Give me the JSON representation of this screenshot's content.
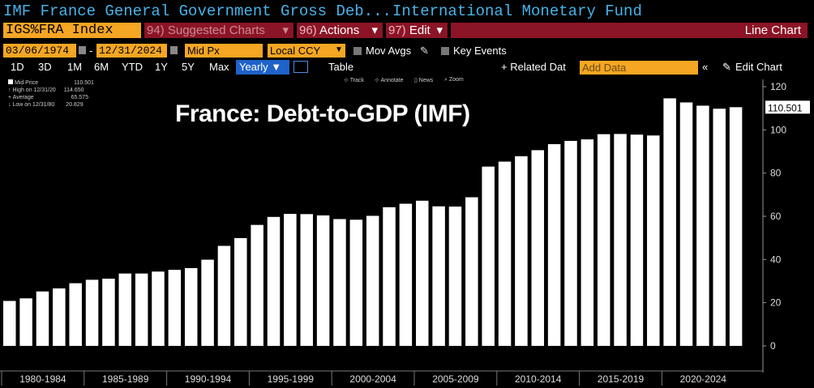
{
  "window": {
    "title_left": "IMF France General Government Gross Deb...",
    "title_right": "International Monetary Fund"
  },
  "toolbar": {
    "ticker": "IGS%FRA Index",
    "suggested_num": "94)",
    "suggested_label": "Suggested Charts",
    "actions_num": "96)",
    "actions_label": "Actions",
    "edit_num": "97)",
    "edit_label": "Edit",
    "chart_type": "Line Chart",
    "caret": "▾"
  },
  "dates": {
    "start": "03/06/1974",
    "separator": "-",
    "end": "12/31/2024",
    "price_field": "Mid Px",
    "currency": "Local CCY",
    "mov_avgs": "Mov Avgs",
    "key_events": "Key Events"
  },
  "range": {
    "buttons": [
      "1D",
      "3D",
      "1M",
      "6M",
      "YTD",
      "1Y",
      "5Y",
      "Max"
    ],
    "frequency": "Yearly ▼",
    "table": "Table",
    "related": "+ Related Dat",
    "add_data_placeholder": "Add Data",
    "collapse": "«",
    "edit_chart": "Edit Chart"
  },
  "legend": {
    "mid_price": "Mid Price",
    "mid_price_value": "110.501",
    "high": "High on 12/31/20",
    "high_value": "114.650",
    "average": "Average",
    "average_value": "65.575",
    "low": "Low on 12/31/80",
    "low_value": "20.829"
  },
  "annotations": [
    "Track",
    "Annotate",
    "News",
    "Zoom"
  ],
  "overlay_title": "France: Debt-to-GDP (IMF)",
  "last_value_label": "110.501",
  "colors": {
    "accent": "#47b3e8",
    "orange": "#f5a623",
    "maroon": "#8b1426",
    "blue": "#1f62c9",
    "bar": "#ffffff"
  },
  "chart_data": {
    "type": "bar",
    "title": "France: Debt-to-GDP (IMF)",
    "xlabel": "",
    "ylabel": "",
    "ylim": [
      0,
      120
    ],
    "yticks": [
      0,
      20,
      40,
      60,
      80,
      100,
      120
    ],
    "x_groups": [
      "1980-1984",
      "1985-1989",
      "1990-1994",
      "1995-1999",
      "2000-2004",
      "2005-2009",
      "2010-2014",
      "2015-2019",
      "2020-2024"
    ],
    "categories": [
      1980,
      1981,
      1982,
      1983,
      1984,
      1985,
      1986,
      1987,
      1988,
      1989,
      1990,
      1991,
      1992,
      1993,
      1994,
      1995,
      1996,
      1997,
      1998,
      1999,
      2000,
      2001,
      2002,
      2003,
      2004,
      2005,
      2006,
      2007,
      2008,
      2009,
      2010,
      2011,
      2012,
      2013,
      2014,
      2015,
      2016,
      2017,
      2018,
      2019,
      2020,
      2021,
      2022,
      2023,
      2024
    ],
    "values": [
      20.8,
      22.0,
      25.2,
      26.6,
      29.0,
      30.6,
      31.1,
      33.5,
      33.5,
      34.4,
      35.2,
      36.0,
      39.9,
      46.3,
      49.9,
      56.0,
      59.7,
      61.1,
      61.0,
      60.4,
      58.7,
      58.4,
      60.2,
      64.2,
      65.8,
      67.2,
      64.6,
      64.5,
      68.8,
      83.0,
      85.3,
      87.8,
      90.6,
      93.4,
      94.9,
      95.6,
      98.0,
      98.1,
      97.8,
      97.4,
      114.6,
      112.7,
      111.2,
      109.8,
      110.5
    ],
    "last_value": 110.501,
    "grid": false,
    "legend_position": "top-left"
  }
}
